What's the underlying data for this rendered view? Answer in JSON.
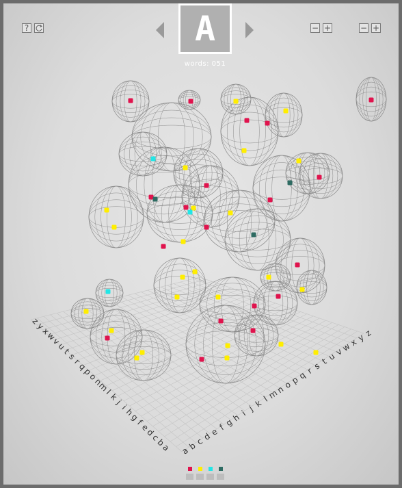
{
  "toolbar": {
    "help_icon": "question-mark-icon",
    "reset_icon": "refresh-icon",
    "minus_label": "−",
    "plus_label": "+"
  },
  "current_letter": "A",
  "word_count_text": "words: 051",
  "axis_left_labels": [
    "z",
    "y",
    "x",
    "w",
    "v",
    "u",
    "t",
    "s",
    "r",
    "q",
    "p",
    "o",
    "n",
    "m",
    "l",
    "k",
    "j",
    "i",
    "h",
    "g",
    "f",
    "e",
    "d",
    "c",
    "b",
    "a"
  ],
  "axis_right_labels": [
    "a",
    "b",
    "c",
    "d",
    "e",
    "f",
    "g",
    "h",
    "i",
    "j",
    "k",
    "l",
    "m",
    "n",
    "o",
    "p",
    "q",
    "r",
    "s",
    "t",
    "u",
    "v",
    "w",
    "x",
    "y",
    "z"
  ],
  "colors": {
    "background": "#dcdcdc",
    "frame": "#6c6c6c",
    "wireframe": "#8a8a8a",
    "grid": "#c4c4c4",
    "red": "#e0134d",
    "yellow": "#ffee00",
    "cyan": "#22e6e6",
    "teal": "#2e6b62"
  },
  "legend": [
    {
      "name": "red",
      "color": "#e0134d"
    },
    {
      "name": "yellow",
      "color": "#ffee00"
    },
    {
      "name": "cyan",
      "color": "#22e6e6"
    },
    {
      "name": "teal",
      "color": "#2e6b62"
    }
  ]
}
